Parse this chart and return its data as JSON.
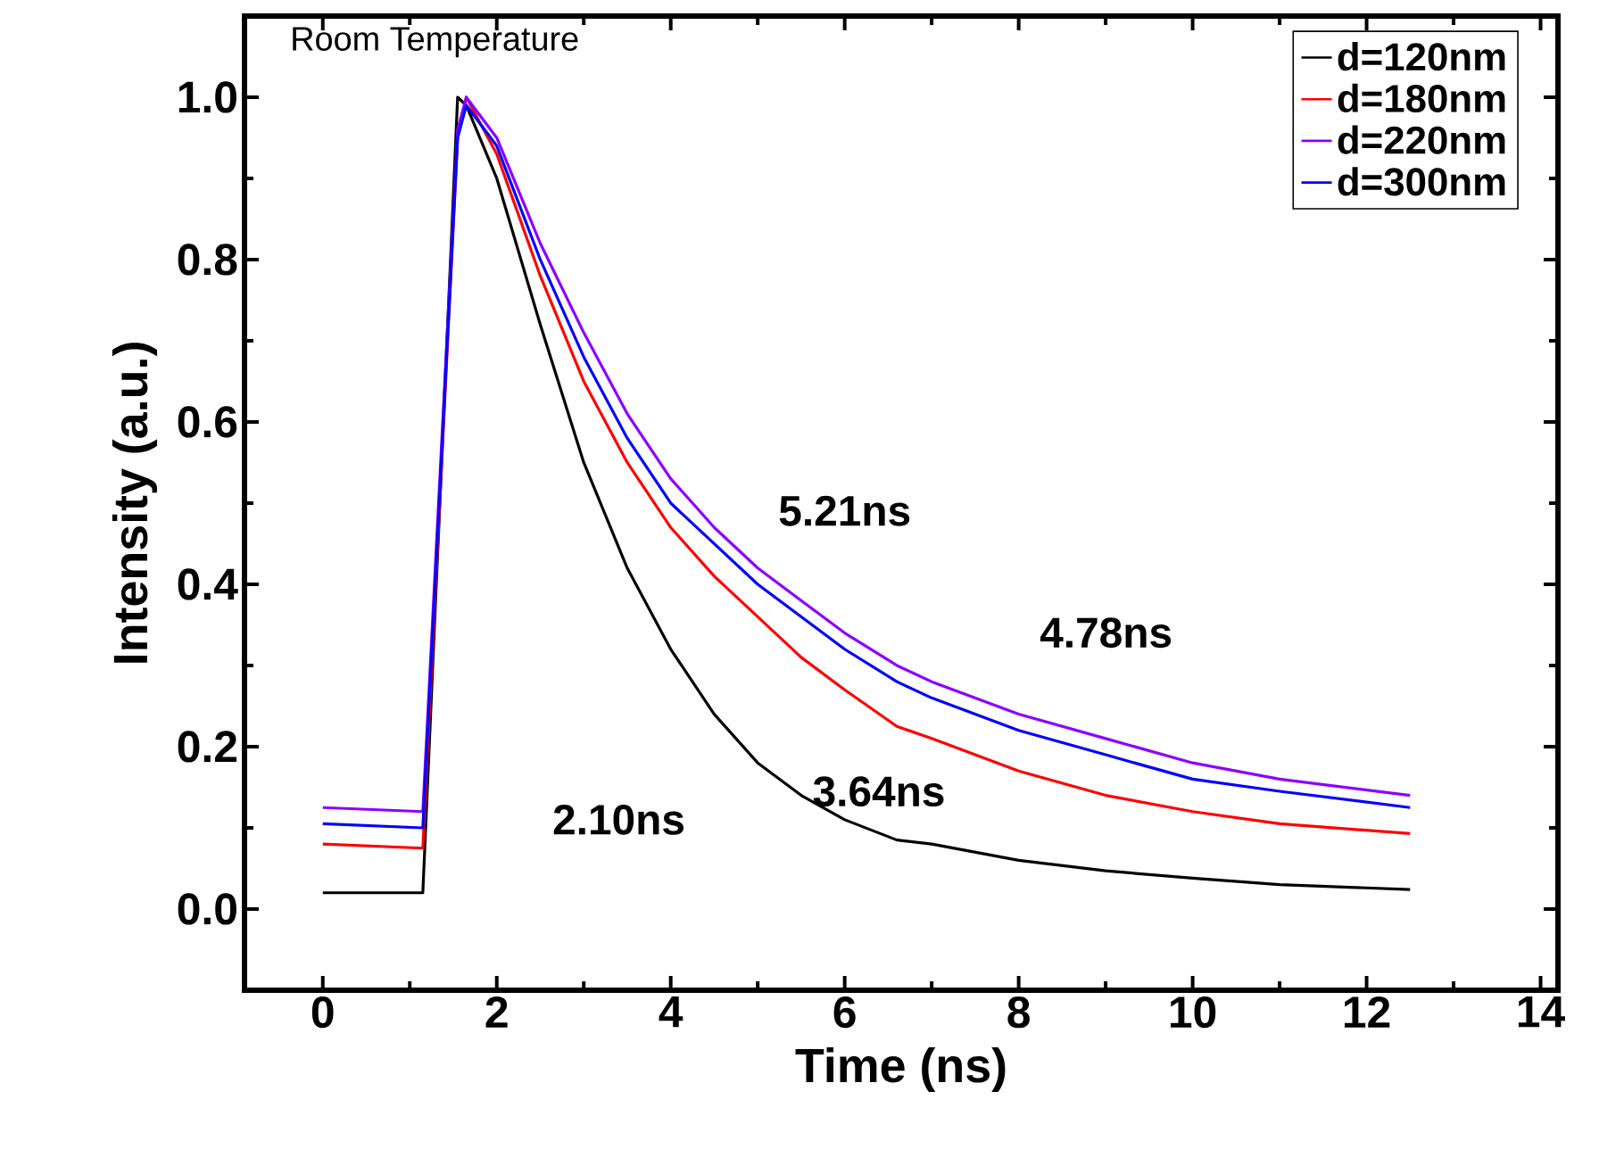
{
  "chart_data": {
    "type": "line",
    "xlabel": "Time (ns)",
    "ylabel": "Intensity (a.u.)",
    "xlim": [
      -0.9,
      14.2
    ],
    "ylim": [
      -0.1,
      1.1
    ],
    "xticks": [
      0,
      2,
      4,
      6,
      8,
      10,
      12,
      14
    ],
    "yticks": [
      {
        "value": 0,
        "label": "0.0"
      },
      {
        "value": 0.2,
        "label": "0.2"
      },
      {
        "value": 0.4,
        "label": "0.4"
      },
      {
        "value": 0.6,
        "label": "0.6"
      },
      {
        "value": 0.8,
        "label": "0.8"
      },
      {
        "value": 1.0,
        "label": "1.0"
      }
    ],
    "legend": "top right",
    "grid": false,
    "marker": "none",
    "line_style": "solid",
    "x": [
      0,
      1.15,
      1.55,
      1.65,
      2.0,
      2.5,
      3.0,
      3.5,
      4.0,
      4.5,
      5.0,
      5.5,
      6.0,
      6.6,
      7.0,
      8.0,
      9.0,
      10.0,
      11.0,
      12.5
    ],
    "series": [
      {
        "name": "d=120nm",
        "color": "#000000",
        "values": [
          0.02,
          0.02,
          1.0,
          0.99,
          0.9,
          0.72,
          0.55,
          0.42,
          0.32,
          0.24,
          0.18,
          0.14,
          0.11,
          0.085,
          0.08,
          0.06,
          0.047,
          0.038,
          0.03,
          0.024
        ]
      },
      {
        "name": "d=180nm",
        "color": "#ff0000",
        "values": [
          0.08,
          0.075,
          0.95,
          1.0,
          0.93,
          0.78,
          0.65,
          0.55,
          0.47,
          0.41,
          0.36,
          0.31,
          0.27,
          0.225,
          0.21,
          0.17,
          0.14,
          0.12,
          0.105,
          0.093
        ]
      },
      {
        "name": "d=220nm",
        "color": "#8b00ff",
        "values": [
          0.125,
          0.12,
          0.96,
          1.0,
          0.95,
          0.82,
          0.71,
          0.61,
          0.53,
          0.47,
          0.42,
          0.38,
          0.34,
          0.3,
          0.28,
          0.24,
          0.21,
          0.18,
          0.16,
          0.14
        ]
      },
      {
        "name": "d=300nm",
        "color": "#0000ff",
        "values": [
          0.105,
          0.1,
          0.95,
          0.99,
          0.94,
          0.8,
          0.68,
          0.58,
          0.5,
          0.45,
          0.4,
          0.36,
          0.32,
          0.28,
          0.26,
          0.22,
          0.19,
          0.16,
          0.145,
          0.125
        ]
      }
    ],
    "annotations": [
      "Room Temperature",
      "2.10ns",
      "3.64ns",
      "5.21ns",
      "4.78ns"
    ]
  }
}
